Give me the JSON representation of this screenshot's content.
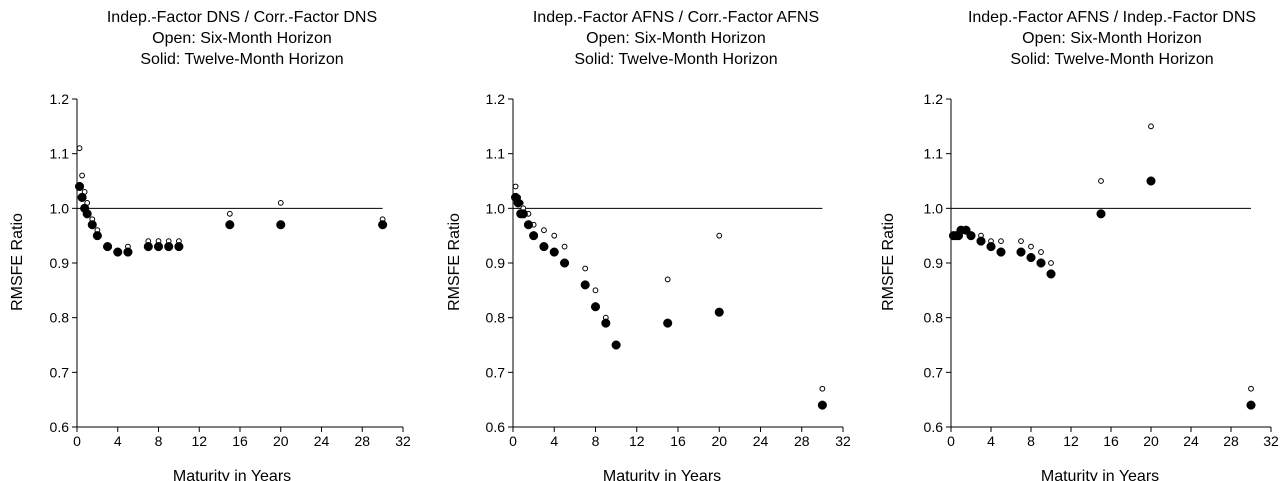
{
  "chart_data": [
    {
      "type": "scatter",
      "title_lines": [
        "Indep.-Factor DNS / Corr.-Factor DNS",
        "Open:  Six-Month Horizon",
        "Solid:  Twelve-Month Horizon"
      ],
      "xlabel": "Maturity in Years",
      "ylabel": "RMSFE Ratio",
      "xlim": [
        0,
        32
      ],
      "ylim": [
        0.6,
        1.2
      ],
      "xticks": [
        "0",
        "4",
        "8",
        "12",
        "16",
        "20",
        "24",
        "28",
        "32"
      ],
      "yticks": [
        "0.6",
        "0.7",
        "0.8",
        "0.9",
        "1.0",
        "1.1",
        "1.2"
      ],
      "reference_line": 1.0,
      "series": [
        {
          "marker": "open",
          "x": [
            0.25,
            0.5,
            0.75,
            1,
            1.5,
            2,
            3,
            4,
            5,
            7,
            8,
            9,
            10,
            15,
            20,
            30
          ],
          "y": [
            1.11,
            1.06,
            1.03,
            1.01,
            0.98,
            0.96,
            0.93,
            0.92,
            0.93,
            0.94,
            0.94,
            0.94,
            0.94,
            0.99,
            1.01,
            0.98
          ]
        },
        {
          "marker": "solid",
          "x": [
            0.25,
            0.5,
            0.75,
            1,
            1.5,
            2,
            3,
            4,
            5,
            7,
            8,
            9,
            10,
            15,
            20,
            30
          ],
          "y": [
            1.04,
            1.02,
            1.0,
            0.99,
            0.97,
            0.95,
            0.93,
            0.92,
            0.92,
            0.93,
            0.93,
            0.93,
            0.93,
            0.97,
            0.97,
            0.97
          ]
        }
      ]
    },
    {
      "type": "scatter",
      "title_lines": [
        "Indep.-Factor AFNS / Corr.-Factor AFNS",
        "Open: Six-Month Horizon",
        "Solid: Twelve-Month Horizon"
      ],
      "xlabel": "Maturity in Years",
      "ylabel": "RMSFE Ratio",
      "xlim": [
        0,
        32
      ],
      "ylim": [
        0.6,
        1.2
      ],
      "xticks": [
        "0",
        "4",
        "8",
        "12",
        "16",
        "20",
        "24",
        "28",
        "32"
      ],
      "yticks": [
        "0.6",
        "0.7",
        "0.8",
        "0.9",
        "1.0",
        "1.1",
        "1.2"
      ],
      "reference_line": 1.0,
      "series": [
        {
          "marker": "open",
          "x": [
            0.25,
            0.5,
            0.75,
            1,
            1.5,
            2,
            3,
            4,
            5,
            7,
            8,
            9,
            10,
            15,
            20,
            30
          ],
          "y": [
            1.04,
            1.02,
            1.01,
            1.0,
            0.99,
            0.97,
            0.96,
            0.95,
            0.93,
            0.89,
            0.85,
            0.8,
            0.75,
            0.87,
            0.95,
            0.67
          ]
        },
        {
          "marker": "solid",
          "x": [
            0.25,
            0.5,
            0.75,
            1,
            1.5,
            2,
            3,
            4,
            5,
            7,
            8,
            9,
            10,
            15,
            20,
            30
          ],
          "y": [
            1.02,
            1.01,
            0.99,
            0.99,
            0.97,
            0.95,
            0.93,
            0.92,
            0.9,
            0.86,
            0.82,
            0.79,
            0.75,
            0.79,
            0.81,
            0.64
          ]
        }
      ]
    },
    {
      "type": "scatter",
      "title_lines": [
        "Indep.-Factor AFNS / Indep.-Factor DNS",
        "Open: Six-Month Horizon",
        "Solid: Twelve-Month Horizon"
      ],
      "xlabel": "Maturity in Years",
      "ylabel": "RMSFE Ratio",
      "xlim": [
        0,
        32
      ],
      "ylim": [
        0.6,
        1.2
      ],
      "xticks": [
        "0",
        "4",
        "8",
        "12",
        "16",
        "20",
        "24",
        "28",
        "32"
      ],
      "yticks": [
        "0.6",
        "0.7",
        "0.8",
        "0.9",
        "1.0",
        "1.1",
        "1.2"
      ],
      "reference_line": 1.0,
      "series": [
        {
          "marker": "open",
          "x": [
            0.25,
            0.5,
            0.75,
            1,
            1.5,
            2,
            3,
            4,
            5,
            7,
            8,
            9,
            10,
            15,
            20,
            30
          ],
          "y": [
            0.95,
            0.95,
            0.95,
            0.96,
            0.96,
            0.95,
            0.95,
            0.94,
            0.94,
            0.94,
            0.93,
            0.92,
            0.9,
            1.05,
            1.15,
            0.67
          ]
        },
        {
          "marker": "solid",
          "x": [
            0.25,
            0.5,
            0.75,
            1,
            1.5,
            2,
            3,
            4,
            5,
            7,
            8,
            9,
            10,
            15,
            20,
            30
          ],
          "y": [
            0.95,
            0.95,
            0.95,
            0.96,
            0.96,
            0.95,
            0.94,
            0.93,
            0.92,
            0.92,
            0.91,
            0.9,
            0.88,
            0.99,
            1.05,
            0.64
          ]
        }
      ]
    }
  ]
}
